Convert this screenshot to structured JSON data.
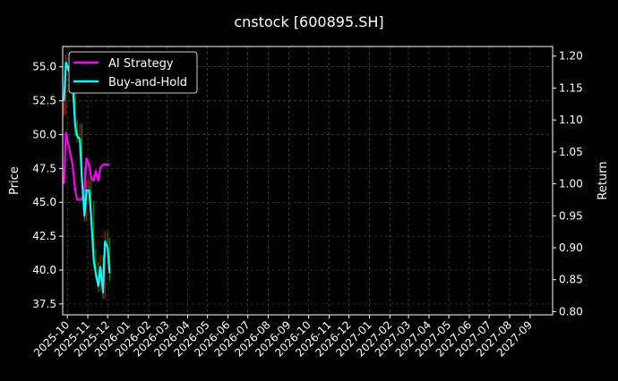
{
  "chart_data": {
    "type": "line",
    "title": "cnstock [600895.SH]",
    "ylabel_left": "Price",
    "ylabel_right": "Return",
    "xlabel": "",
    "ylim_left": [
      36.7,
      56.5
    ],
    "ylim_right": [
      0.795,
      1.215
    ],
    "xlim": [
      "2025-09-24",
      "2027-10-05"
    ],
    "grid": true,
    "legend_position": "top-left",
    "x_tick_labels": [
      "2025-10",
      "2025-11",
      "2025-12",
      "2026-01",
      "2026-02",
      "2026-03",
      "2026-04",
      "2026-05",
      "2026-06",
      "2026-07",
      "2026-08",
      "2026-09",
      "2026-10",
      "2026-11",
      "2026-12",
      "2027-01",
      "2027-02",
      "2027-03",
      "2027-04",
      "2027-05",
      "2027-06",
      "2027-07",
      "2027-08",
      "2027-09"
    ],
    "y_ticks_left": [
      "37.5",
      "40.0",
      "42.5",
      "45.0",
      "47.5",
      "50.0",
      "52.5",
      "55.0"
    ],
    "y_ticks_right": [
      "0.80",
      "0.85",
      "0.90",
      "0.95",
      "1.00",
      "1.05",
      "1.10",
      "1.15",
      "1.20"
    ],
    "dates": [
      "2025-09-26",
      "2025-09-29",
      "2025-10-09",
      "2025-10-13",
      "2025-10-16",
      "2025-10-20",
      "2025-10-23",
      "2025-10-27",
      "2025-10-30",
      "2025-11-03",
      "2025-11-06",
      "2025-11-10",
      "2025-11-13",
      "2025-11-17",
      "2025-11-20",
      "2025-11-24",
      "2025-11-27",
      "2025-12-01",
      "2025-12-04"
    ],
    "close": [
      52.0,
      55.3,
      54.0,
      50.5,
      50.0,
      50.2,
      47.0,
      44.2,
      46.0,
      46.2,
      44.5,
      41.0,
      40.0,
      39.0,
      40.5,
      38.5,
      42.3,
      41.8,
      39.8
    ],
    "series": [
      {
        "name": "AI Strategy",
        "axis": "right",
        "color": "#ff00ff",
        "values": [
          1.0,
          1.08,
          1.03,
          0.99,
          0.975,
          0.975,
          0.975,
          0.99,
          1.04,
          1.03,
          1.01,
          1.005,
          1.02,
          1.005,
          1.025,
          1.03,
          1.03,
          1.03,
          1.03
        ]
      },
      {
        "name": "Buy-and-Hold",
        "axis": "right",
        "color": "#00ffff",
        "values": [
          1.13,
          1.19,
          1.16,
          1.09,
          1.075,
          1.07,
          1.01,
          0.95,
          0.99,
          0.99,
          0.95,
          0.88,
          0.86,
          0.84,
          0.87,
          0.83,
          0.91,
          0.9,
          0.86
        ]
      }
    ],
    "candle_colors": {
      "up": "#ff0000",
      "down": "#00aa00"
    }
  }
}
